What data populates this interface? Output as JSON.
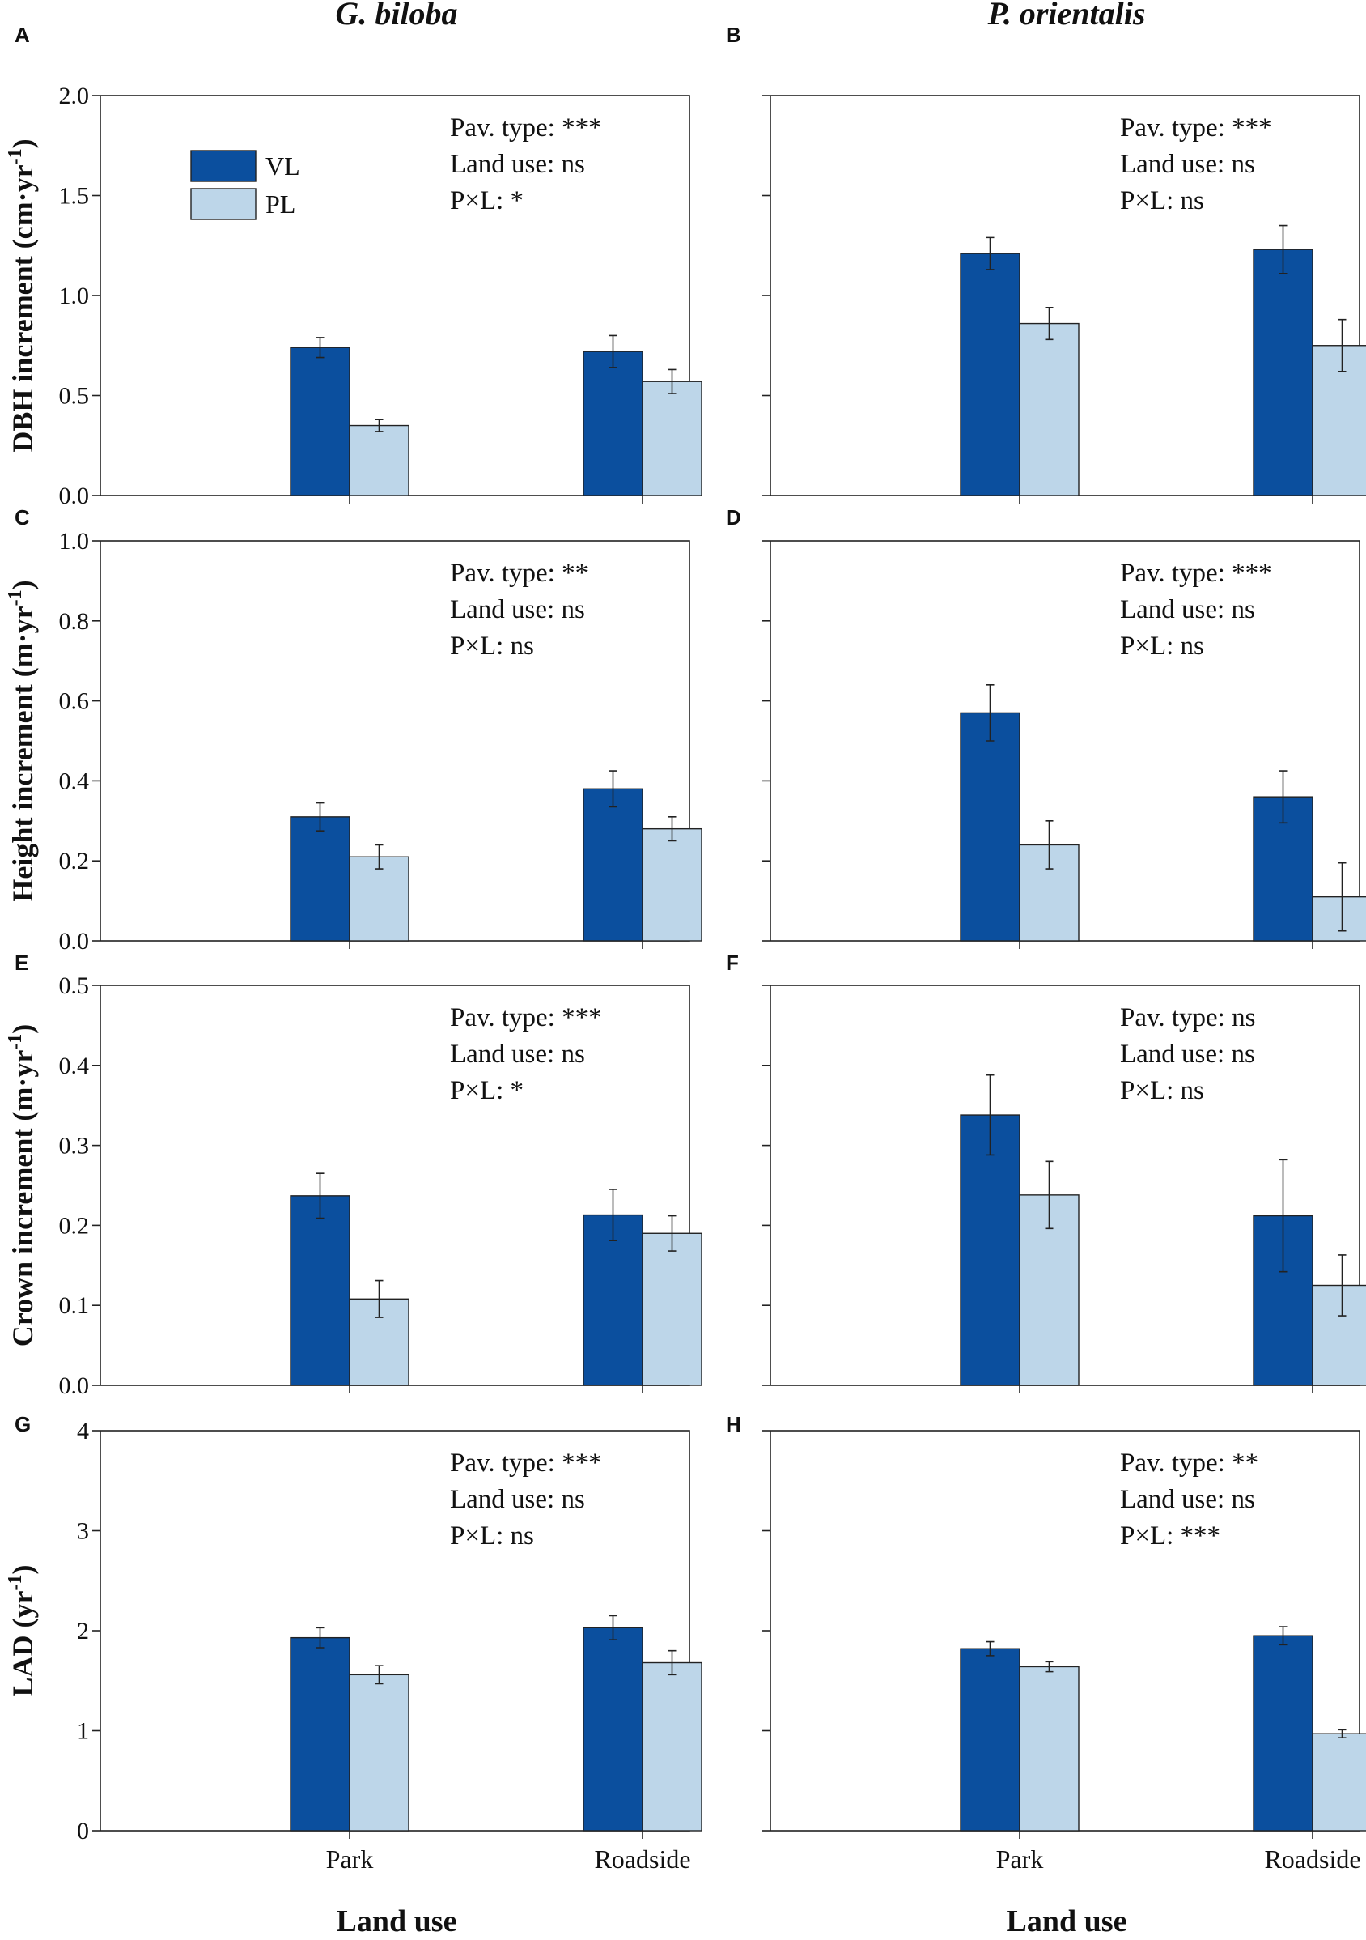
{
  "colors": {
    "VL": "#0b4f9e",
    "PL": "#bdd6e9"
  },
  "column_titles": [
    "G. biloba",
    "P. orientalis"
  ],
  "xlabel": "Land use",
  "legend": [
    "VL",
    "PL"
  ],
  "chart_data": [
    {
      "type": "bar",
      "panel": "A",
      "species": "G. biloba",
      "ylabel": "DBH increment (cm·yr",
      "ylabel_sup": "-1",
      "ylabel_end": ")",
      "ylim": [
        0,
        2.0
      ],
      "yticks": [
        "0.0",
        "0.5",
        "1.0",
        "1.5",
        "2.0"
      ],
      "ytick_values": [
        0,
        0.5,
        1.0,
        1.5,
        2.0
      ],
      "categories": [
        "Park",
        "Roadside"
      ],
      "series": [
        {
          "name": "VL",
          "values": [
            0.74,
            0.72
          ],
          "errors": [
            0.05,
            0.08
          ]
        },
        {
          "name": "PL",
          "values": [
            0.35,
            0.57
          ],
          "errors": [
            0.03,
            0.06
          ]
        }
      ],
      "stats": [
        "Pav. type: ***",
        "Land use: ns",
        "P×L: *"
      ]
    },
    {
      "type": "bar",
      "panel": "B",
      "species": "P. orientalis",
      "ylim": [
        0,
        2.0
      ],
      "ytick_values": [
        0,
        0.5,
        1.0,
        1.5,
        2.0
      ],
      "categories": [
        "Park",
        "Roadside"
      ],
      "series": [
        {
          "name": "VL",
          "values": [
            1.21,
            1.23
          ],
          "errors": [
            0.08,
            0.12
          ]
        },
        {
          "name": "PL",
          "values": [
            0.86,
            0.75
          ],
          "errors": [
            0.08,
            0.13
          ]
        }
      ],
      "stats": [
        "Pav. type: ***",
        "Land use: ns",
        "P×L: ns"
      ]
    },
    {
      "type": "bar",
      "panel": "C",
      "species": "G. biloba",
      "ylabel": "Height increment (m·yr",
      "ylabel_sup": "-1",
      "ylabel_end": ")",
      "ylim": [
        0,
        1.0
      ],
      "yticks": [
        "0.0",
        "0.2",
        "0.4",
        "0.6",
        "0.8",
        "1.0"
      ],
      "ytick_values": [
        0,
        0.2,
        0.4,
        0.6,
        0.8,
        1.0
      ],
      "categories": [
        "Park",
        "Roadside"
      ],
      "series": [
        {
          "name": "VL",
          "values": [
            0.31,
            0.38
          ],
          "errors": [
            0.035,
            0.045
          ]
        },
        {
          "name": "PL",
          "values": [
            0.21,
            0.28
          ],
          "errors": [
            0.03,
            0.03
          ]
        }
      ],
      "stats": [
        "Pav. type: **",
        "Land use: ns",
        "P×L: ns"
      ]
    },
    {
      "type": "bar",
      "panel": "D",
      "species": "P. orientalis",
      "ylim": [
        0,
        1.0
      ],
      "ytick_values": [
        0,
        0.2,
        0.4,
        0.6,
        0.8,
        1.0
      ],
      "categories": [
        "Park",
        "Roadside"
      ],
      "series": [
        {
          "name": "VL",
          "values": [
            0.57,
            0.36
          ],
          "errors": [
            0.07,
            0.065
          ]
        },
        {
          "name": "PL",
          "values": [
            0.24,
            0.11
          ],
          "errors": [
            0.06,
            0.085
          ]
        }
      ],
      "stats": [
        "Pav. type: ***",
        "Land use: ns",
        "P×L: ns"
      ]
    },
    {
      "type": "bar",
      "panel": "E",
      "species": "G. biloba",
      "ylabel": "Crown increment (m·yr",
      "ylabel_sup": "-1",
      "ylabel_end": ")",
      "ylim": [
        0,
        0.5
      ],
      "yticks": [
        "0.0",
        "0.1",
        "0.2",
        "0.3",
        "0.4",
        "0.5"
      ],
      "ytick_values": [
        0,
        0.1,
        0.2,
        0.3,
        0.4,
        0.5
      ],
      "categories": [
        "Park",
        "Roadside"
      ],
      "series": [
        {
          "name": "VL",
          "values": [
            0.237,
            0.213
          ],
          "errors": [
            0.028,
            0.032
          ]
        },
        {
          "name": "PL",
          "values": [
            0.108,
            0.19
          ],
          "errors": [
            0.023,
            0.022
          ]
        }
      ],
      "stats": [
        "Pav. type: ***",
        "Land use: ns",
        "P×L: *"
      ]
    },
    {
      "type": "bar",
      "panel": "F",
      "species": "P. orientalis",
      "ylim": [
        0,
        0.5
      ],
      "ytick_values": [
        0,
        0.1,
        0.2,
        0.3,
        0.4,
        0.5
      ],
      "categories": [
        "Park",
        "Roadside"
      ],
      "series": [
        {
          "name": "VL",
          "values": [
            0.338,
            0.212
          ],
          "errors": [
            0.05,
            0.07
          ]
        },
        {
          "name": "PL",
          "values": [
            0.238,
            0.125
          ],
          "errors": [
            0.042,
            0.038
          ]
        }
      ],
      "stats": [
        "Pav. type: ns",
        "Land use: ns",
        "P×L: ns"
      ]
    },
    {
      "type": "bar",
      "panel": "G",
      "species": "G. biloba",
      "ylabel": "LAD (yr",
      "ylabel_sup": "-1",
      "ylabel_end": ")",
      "ylim": [
        0,
        4
      ],
      "yticks": [
        "0",
        "1",
        "2",
        "3",
        "4"
      ],
      "ytick_values": [
        0,
        1,
        2,
        3,
        4
      ],
      "categories": [
        "Park",
        "Roadside"
      ],
      "series": [
        {
          "name": "VL",
          "values": [
            1.93,
            2.03
          ],
          "errors": [
            0.1,
            0.12
          ]
        },
        {
          "name": "PL",
          "values": [
            1.56,
            1.68
          ],
          "errors": [
            0.09,
            0.12
          ]
        }
      ],
      "stats": [
        "Pav. type: ***",
        "Land use: ns",
        "P×L: ns"
      ]
    },
    {
      "type": "bar",
      "panel": "H",
      "species": "P. orientalis",
      "ylim": [
        0,
        4
      ],
      "ytick_values": [
        0,
        1,
        2,
        3,
        4
      ],
      "categories": [
        "Park",
        "Roadside"
      ],
      "series": [
        {
          "name": "VL",
          "values": [
            1.82,
            1.95
          ],
          "errors": [
            0.07,
            0.09
          ]
        },
        {
          "name": "PL",
          "values": [
            1.64,
            0.97
          ],
          "errors": [
            0.05,
            0.04
          ]
        }
      ],
      "stats": [
        "Pav. type: **",
        "Land use: ns",
        "P×L: ***"
      ]
    }
  ]
}
